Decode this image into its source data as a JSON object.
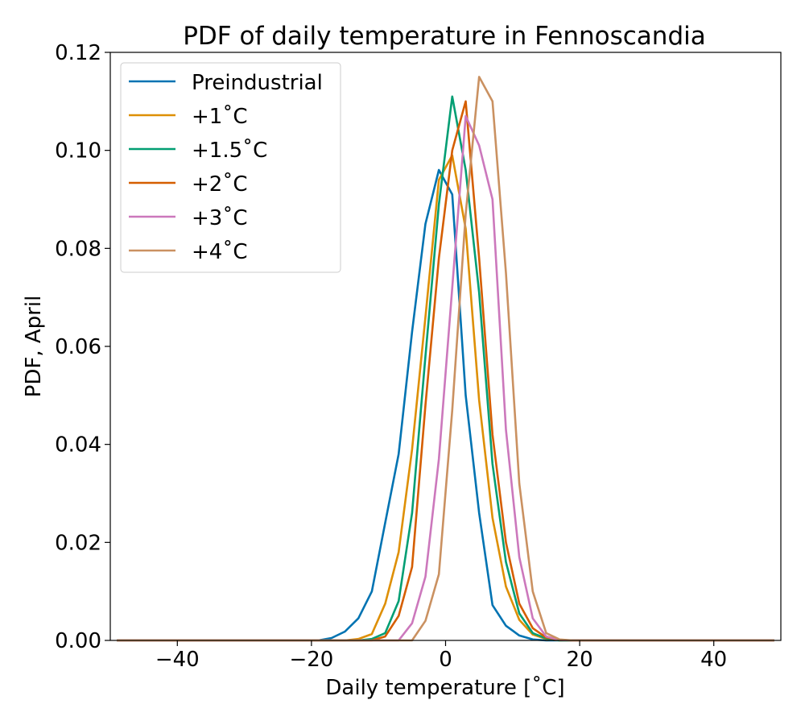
{
  "chart_data": {
    "type": "line",
    "title": "PDF of daily temperature in Fennoscandia",
    "xlabel": "Daily temperature [˚C]",
    "ylabel": "PDF, April",
    "xlim": [
      -50,
      50
    ],
    "ylim": [
      0,
      0.12
    ],
    "grid": false,
    "legend_position": "top-left",
    "xticks": [
      -40,
      -20,
      0,
      20,
      40
    ],
    "xtick_labels": [
      "−40",
      "−20",
      "0",
      "20",
      "40"
    ],
    "yticks": [
      0.0,
      0.02,
      0.04,
      0.06,
      0.08,
      0.1,
      0.12
    ],
    "ytick_labels": [
      "0.00",
      "0.02",
      "0.04",
      "0.06",
      "0.08",
      "0.10",
      "0.12"
    ],
    "x": [
      -49,
      -47,
      -45,
      -43,
      -41,
      -39,
      -37,
      -35,
      -33,
      -31,
      -29,
      -27,
      -25,
      -23,
      -21,
      -19,
      -17,
      -15,
      -13,
      -11,
      -9,
      -7,
      -5,
      -3,
      -1,
      1,
      3,
      5,
      7,
      9,
      11,
      13,
      15,
      17,
      19,
      21,
      23,
      25,
      27,
      29,
      31,
      33,
      35,
      37,
      39,
      41,
      43,
      45,
      47,
      49
    ],
    "series": [
      {
        "name": "Preindustrial",
        "color": "#0173b2",
        "values": [
          0,
          0,
          0,
          0,
          0,
          0,
          0,
          0,
          0,
          0,
          0,
          0,
          0,
          0,
          0,
          0,
          0.0005,
          0.0018,
          0.0045,
          0.01,
          0.024,
          0.038,
          0.063,
          0.085,
          0.096,
          0.091,
          0.05,
          0.026,
          0.0072,
          0.003,
          0.001,
          0.0002,
          0,
          0,
          0,
          0,
          0,
          0,
          0,
          0,
          0,
          0,
          0,
          0,
          0,
          0,
          0,
          0,
          0,
          0
        ]
      },
      {
        "name": "+1˚C",
        "color": "#de8f05",
        "values": [
          0,
          0,
          0,
          0,
          0,
          0,
          0,
          0,
          0,
          0,
          0,
          0,
          0,
          0,
          0,
          0,
          0,
          0,
          0.0003,
          0.0013,
          0.0075,
          0.018,
          0.039,
          0.066,
          0.094,
          0.099,
          0.084,
          0.049,
          0.025,
          0.011,
          0.0042,
          0.0012,
          0.0003,
          0,
          0,
          0,
          0,
          0,
          0,
          0,
          0,
          0,
          0,
          0,
          0,
          0,
          0,
          0,
          0,
          0
        ]
      },
      {
        "name": "+1.5˚C",
        "color": "#029e73",
        "values": [
          0,
          0,
          0,
          0,
          0,
          0,
          0,
          0,
          0,
          0,
          0,
          0,
          0,
          0,
          0,
          0,
          0,
          0,
          0,
          0.0003,
          0.0015,
          0.008,
          0.026,
          0.058,
          0.089,
          0.111,
          0.096,
          0.071,
          0.036,
          0.016,
          0.0055,
          0.0015,
          0.0004,
          0,
          0,
          0,
          0,
          0,
          0,
          0,
          0,
          0,
          0,
          0,
          0,
          0,
          0,
          0,
          0,
          0
        ]
      },
      {
        "name": "+2˚C",
        "color": "#d55e00",
        "values": [
          0,
          0,
          0,
          0,
          0,
          0,
          0,
          0,
          0,
          0,
          0,
          0,
          0,
          0,
          0,
          0,
          0,
          0,
          0,
          0,
          0.0008,
          0.005,
          0.015,
          0.048,
          0.078,
          0.1,
          0.11,
          0.078,
          0.042,
          0.02,
          0.0075,
          0.0025,
          0.0006,
          0.0001,
          0,
          0,
          0,
          0,
          0,
          0,
          0,
          0,
          0,
          0,
          0,
          0,
          0,
          0,
          0,
          0
        ]
      },
      {
        "name": "+3˚C",
        "color": "#cc78bc",
        "values": [
          0,
          0,
          0,
          0,
          0,
          0,
          0,
          0,
          0,
          0,
          0,
          0,
          0,
          0,
          0,
          0,
          0,
          0,
          0,
          0,
          0,
          0,
          0.0035,
          0.013,
          0.037,
          0.072,
          0.107,
          0.101,
          0.09,
          0.043,
          0.017,
          0.0045,
          0.0008,
          0.0001,
          0,
          0,
          0,
          0,
          0,
          0,
          0,
          0,
          0,
          0,
          0,
          0,
          0,
          0,
          0,
          0
        ]
      },
      {
        "name": "+4˚C",
        "color": "#ca9161",
        "values": [
          0,
          0,
          0,
          0,
          0,
          0,
          0,
          0,
          0,
          0,
          0,
          0,
          0,
          0,
          0,
          0,
          0,
          0,
          0,
          0,
          0,
          0,
          0,
          0.004,
          0.0135,
          0.047,
          0.087,
          0.115,
          0.11,
          0.075,
          0.032,
          0.01,
          0.0015,
          0.0002,
          0,
          0,
          0,
          0,
          0,
          0,
          0,
          0,
          0,
          0,
          0,
          0,
          0,
          0,
          0,
          0
        ]
      }
    ]
  }
}
